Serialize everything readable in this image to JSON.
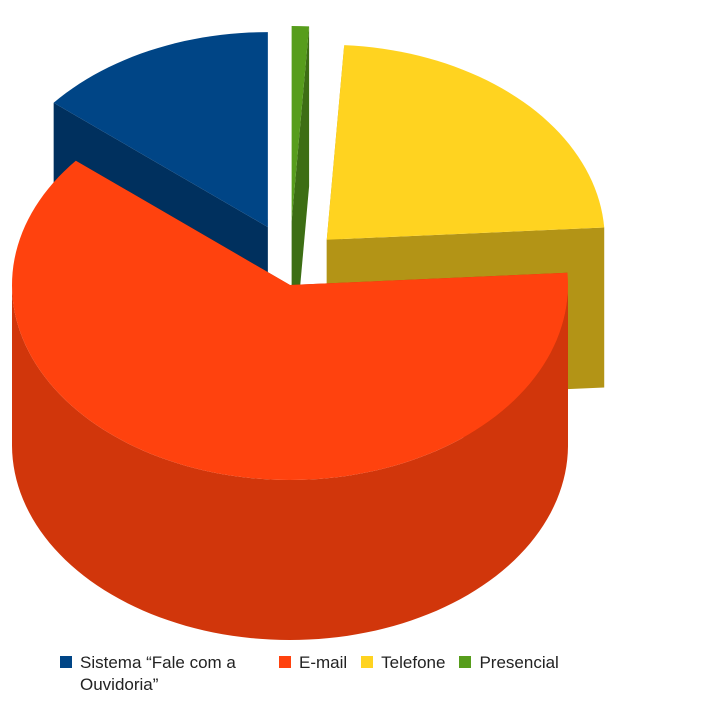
{
  "chart_data": {
    "type": "pie3d",
    "categories": [
      "Sistema “Fale com a Ouvidoria”",
      "E-mail",
      "Telefone",
      "Presencial"
    ],
    "values": [
      14,
      62,
      23,
      1
    ],
    "colors": [
      "#004586",
      "#ff420e",
      "#ffd320",
      "#579d1c"
    ]
  }
}
